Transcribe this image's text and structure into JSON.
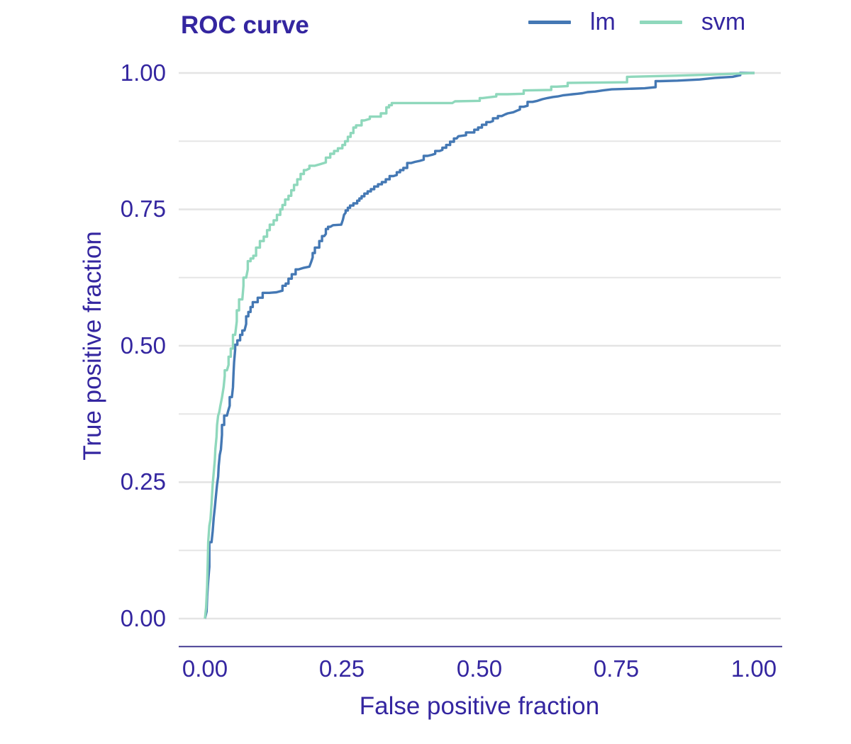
{
  "chart_data": {
    "type": "line",
    "title": "ROC curve",
    "xlabel": "False positive fraction",
    "ylabel": "True positive fraction",
    "xlim": [
      0,
      1
    ],
    "ylim": [
      0,
      1
    ],
    "x_ticks": [
      "0.00",
      "0.25",
      "0.50",
      "0.75",
      "1.00"
    ],
    "y_ticks": [
      "1.00",
      "0.75",
      "0.50",
      "0.25",
      "0.00"
    ],
    "x_tick_values": [
      0,
      0.25,
      0.5,
      0.75,
      1
    ],
    "y_tick_values": [
      1,
      0.75,
      0.5,
      0.25,
      0
    ],
    "grid": "horizontal only, major and minor, no vertical gridlines",
    "y_grid_major": [
      0,
      0.25,
      0.5,
      0.75,
      1
    ],
    "y_grid_minor": [
      0.125,
      0.375,
      0.625,
      0.875
    ],
    "legend_position": "top-right",
    "line_style": "stepped ROC curves",
    "colors": {
      "background": "#FFFFFF",
      "text": "#3426A0",
      "axis_line": "#2C2385",
      "grid_major": "#E4E4E4",
      "grid_minor": "#E6E6E6"
    },
    "series": [
      {
        "name": "lm",
        "color": "#4478B4",
        "points": [
          [
            0,
            0
          ],
          [
            0.003,
            0.013
          ],
          [
            0.004,
            0.04
          ],
          [
            0.006,
            0.07
          ],
          [
            0.008,
            0.095
          ],
          [
            0.012,
            0.14
          ],
          [
            0.014,
            0.16
          ],
          [
            0.016,
            0.185
          ],
          [
            0.018,
            0.203
          ],
          [
            0.02,
            0.225
          ],
          [
            0.022,
            0.246
          ],
          [
            0.024,
            0.26
          ],
          [
            0.025,
            0.28
          ],
          [
            0.027,
            0.3
          ],
          [
            0.029,
            0.31
          ],
          [
            0.031,
            0.337
          ],
          [
            0.035,
            0.355
          ],
          [
            0.04,
            0.372
          ],
          [
            0.042,
            0.38
          ],
          [
            0.045,
            0.39
          ],
          [
            0.049,
            0.406
          ],
          [
            0.051,
            0.424
          ],
          [
            0.052,
            0.45
          ],
          [
            0.053,
            0.47
          ],
          [
            0.055,
            0.493
          ],
          [
            0.059,
            0.502
          ],
          [
            0.064,
            0.51
          ],
          [
            0.068,
            0.52
          ],
          [
            0.072,
            0.528
          ],
          [
            0.075,
            0.54
          ],
          [
            0.079,
            0.554
          ],
          [
            0.083,
            0.562
          ],
          [
            0.087,
            0.571
          ],
          [
            0.096,
            0.58
          ],
          [
            0.105,
            0.588
          ],
          [
            0.117,
            0.597
          ],
          [
            0.13,
            0.598
          ],
          [
            0.141,
            0.601
          ],
          [
            0.147,
            0.61
          ],
          [
            0.152,
            0.614
          ],
          [
            0.158,
            0.623
          ],
          [
            0.165,
            0.631
          ],
          [
            0.17,
            0.64
          ],
          [
            0.18,
            0.643
          ],
          [
            0.19,
            0.645
          ],
          [
            0.193,
            0.653
          ],
          [
            0.196,
            0.662
          ],
          [
            0.2,
            0.67
          ],
          [
            0.208,
            0.68
          ],
          [
            0.213,
            0.692
          ],
          [
            0.217,
            0.701
          ],
          [
            0.22,
            0.705
          ],
          [
            0.224,
            0.714
          ],
          [
            0.228,
            0.718
          ],
          [
            0.233,
            0.721
          ],
          [
            0.248,
            0.722
          ],
          [
            0.251,
            0.731
          ],
          [
            0.253,
            0.74
          ],
          [
            0.256,
            0.744
          ],
          [
            0.26,
            0.748
          ],
          [
            0.264,
            0.753
          ],
          [
            0.27,
            0.757
          ],
          [
            0.277,
            0.761
          ],
          [
            0.281,
            0.766
          ],
          [
            0.285,
            0.77
          ],
          [
            0.29,
            0.774
          ],
          [
            0.296,
            0.779
          ],
          [
            0.302,
            0.783
          ],
          [
            0.308,
            0.787
          ],
          [
            0.315,
            0.792
          ],
          [
            0.322,
            0.796
          ],
          [
            0.329,
            0.8
          ],
          [
            0.336,
            0.805
          ],
          [
            0.343,
            0.811
          ],
          [
            0.349,
            0.813
          ],
          [
            0.355,
            0.818
          ],
          [
            0.361,
            0.822
          ],
          [
            0.368,
            0.826
          ],
          [
            0.375,
            0.835
          ],
          [
            0.382,
            0.837
          ],
          [
            0.391,
            0.839
          ],
          [
            0.398,
            0.841
          ],
          [
            0.405,
            0.848
          ],
          [
            0.413,
            0.85
          ],
          [
            0.419,
            0.852
          ],
          [
            0.427,
            0.857
          ],
          [
            0.432,
            0.859
          ],
          [
            0.439,
            0.863
          ],
          [
            0.446,
            0.868
          ],
          [
            0.453,
            0.874
          ],
          [
            0.458,
            0.88
          ],
          [
            0.461,
            0.884
          ],
          [
            0.475,
            0.886
          ],
          [
            0.49,
            0.891
          ],
          [
            0.497,
            0.896
          ],
          [
            0.504,
            0.9
          ],
          [
            0.512,
            0.905
          ],
          [
            0.519,
            0.91
          ],
          [
            0.524,
            0.912
          ],
          [
            0.533,
            0.917
          ],
          [
            0.54,
            0.921
          ],
          [
            0.546,
            0.924
          ],
          [
            0.551,
            0.926
          ],
          [
            0.561,
            0.928
          ],
          [
            0.568,
            0.931
          ],
          [
            0.573,
            0.933
          ],
          [
            0.58,
            0.938
          ],
          [
            0.587,
            0.94
          ],
          [
            0.596,
            0.947
          ],
          [
            0.605,
            0.949
          ],
          [
            0.614,
            0.952
          ],
          [
            0.623,
            0.954
          ],
          [
            0.633,
            0.956
          ],
          [
            0.642,
            0.957
          ],
          [
            0.651,
            0.959
          ],
          [
            0.66,
            0.96
          ],
          [
            0.669,
            0.961
          ],
          [
            0.678,
            0.962
          ],
          [
            0.687,
            0.963
          ],
          [
            0.696,
            0.965
          ],
          [
            0.71,
            0.966
          ],
          [
            0.724,
            0.968
          ],
          [
            0.74,
            0.97
          ],
          [
            0.772,
            0.971
          ],
          [
            0.8,
            0.972
          ],
          [
            0.82,
            0.974
          ],
          [
            0.828,
            0.985
          ],
          [
            0.86,
            0.986
          ],
          [
            0.9,
            0.988
          ],
          [
            0.928,
            0.991
          ],
          [
            0.96,
            0.993
          ],
          [
            0.974,
            0.996
          ],
          [
            1,
            1
          ]
        ]
      },
      {
        "name": "svm",
        "color": "#8FD8BC",
        "points": [
          [
            0,
            0
          ],
          [
            0.002,
            0.02
          ],
          [
            0.004,
            0.06
          ],
          [
            0.005,
            0.1
          ],
          [
            0.006,
            0.14
          ],
          [
            0.008,
            0.17
          ],
          [
            0.01,
            0.182
          ],
          [
            0.012,
            0.21
          ],
          [
            0.014,
            0.246
          ],
          [
            0.016,
            0.268
          ],
          [
            0.018,
            0.29
          ],
          [
            0.019,
            0.311
          ],
          [
            0.021,
            0.333
          ],
          [
            0.022,
            0.355
          ],
          [
            0.024,
            0.372
          ],
          [
            0.026,
            0.378
          ],
          [
            0.028,
            0.39
          ],
          [
            0.031,
            0.405
          ],
          [
            0.034,
            0.425
          ],
          [
            0.036,
            0.445
          ],
          [
            0.04,
            0.455
          ],
          [
            0.043,
            0.465
          ],
          [
            0.047,
            0.48
          ],
          [
            0.051,
            0.495
          ],
          [
            0.055,
            0.52
          ],
          [
            0.058,
            0.545
          ],
          [
            0.062,
            0.565
          ],
          [
            0.068,
            0.585
          ],
          [
            0.07,
            0.61
          ],
          [
            0.075,
            0.625
          ],
          [
            0.078,
            0.64
          ],
          [
            0.083,
            0.655
          ],
          [
            0.093,
            0.665
          ],
          [
            0.1,
            0.68
          ],
          [
            0.107,
            0.692
          ],
          [
            0.113,
            0.7
          ],
          [
            0.118,
            0.712
          ],
          [
            0.125,
            0.722
          ],
          [
            0.131,
            0.73
          ],
          [
            0.137,
            0.74
          ],
          [
            0.141,
            0.75
          ],
          [
            0.146,
            0.758
          ],
          [
            0.152,
            0.768
          ],
          [
            0.157,
            0.775
          ],
          [
            0.162,
            0.785
          ],
          [
            0.168,
            0.795
          ],
          [
            0.174,
            0.805
          ],
          [
            0.18,
            0.815
          ],
          [
            0.184,
            0.822
          ],
          [
            0.19,
            0.825
          ],
          [
            0.2,
            0.83
          ],
          [
            0.21,
            0.833
          ],
          [
            0.22,
            0.836
          ],
          [
            0.228,
            0.845
          ],
          [
            0.235,
            0.852
          ],
          [
            0.242,
            0.857
          ],
          [
            0.25,
            0.862
          ],
          [
            0.255,
            0.868
          ],
          [
            0.26,
            0.875
          ],
          [
            0.265,
            0.883
          ],
          [
            0.27,
            0.89
          ],
          [
            0.275,
            0.9
          ],
          [
            0.285,
            0.904
          ],
          [
            0.29,
            0.913
          ],
          [
            0.3,
            0.916
          ],
          [
            0.32,
            0.92
          ],
          [
            0.33,
            0.926
          ],
          [
            0.335,
            0.937
          ],
          [
            0.34,
            0.941
          ],
          [
            0.345,
            0.945
          ],
          [
            0.45,
            0.945
          ],
          [
            0.455,
            0.948
          ],
          [
            0.5,
            0.949
          ],
          [
            0.505,
            0.954
          ],
          [
            0.53,
            0.957
          ],
          [
            0.55,
            0.961
          ],
          [
            0.58,
            0.962
          ],
          [
            0.585,
            0.968
          ],
          [
            0.63,
            0.969
          ],
          [
            0.64,
            0.975
          ],
          [
            0.66,
            0.976
          ],
          [
            0.665,
            0.982
          ],
          [
            0.768,
            0.983
          ],
          [
            0.772,
            0.993
          ],
          [
            0.85,
            0.995
          ],
          [
            0.92,
            0.997
          ],
          [
            1,
            1
          ]
        ]
      }
    ]
  }
}
